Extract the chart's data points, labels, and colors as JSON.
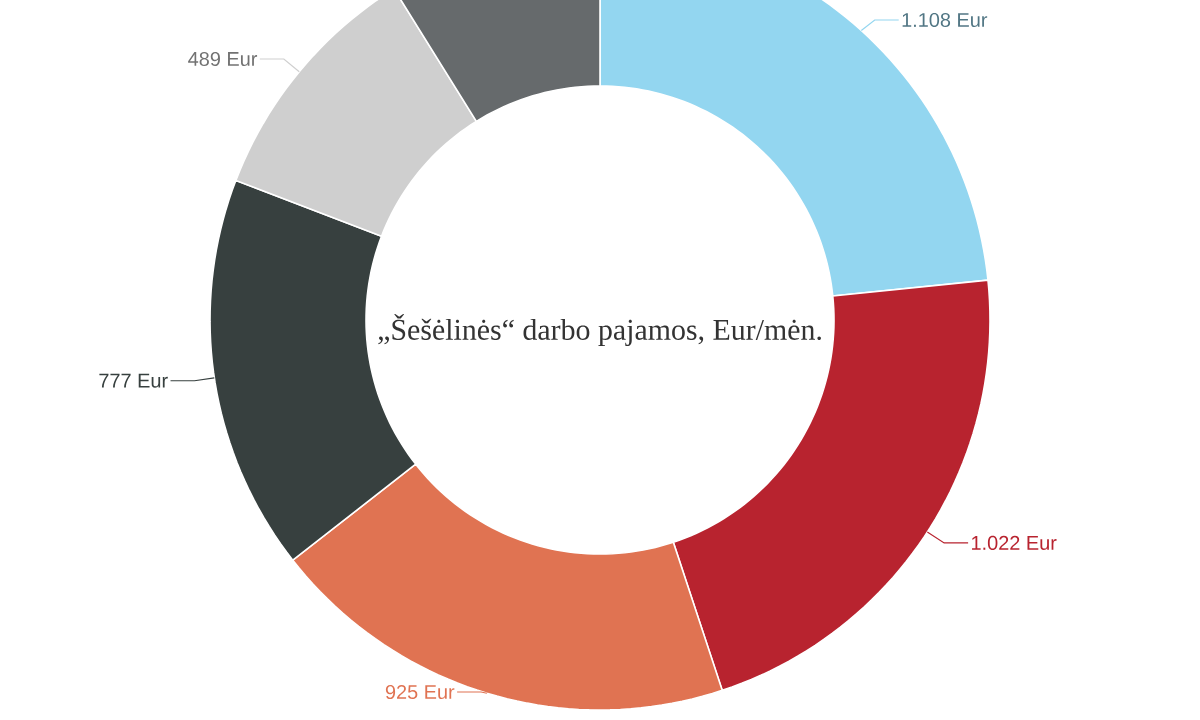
{
  "chart_data": {
    "type": "donut",
    "title": "„Šešėlinės“ darbo pajamos, Eur/mėn.",
    "categories": [
      null,
      null,
      null,
      null,
      null,
      null
    ],
    "values": [
      1108,
      1022,
      925,
      777,
      489,
      420
    ],
    "colors": [
      "#93d6f0",
      "#b8232f",
      "#e07352",
      "#37403f",
      "#cfcfcf",
      "#666a6c"
    ],
    "value_labels": [
      "1.108 Eur",
      "1.022 Eur",
      "925 Eur",
      "777 Eur",
      "489 Eur",
      null
    ]
  }
}
